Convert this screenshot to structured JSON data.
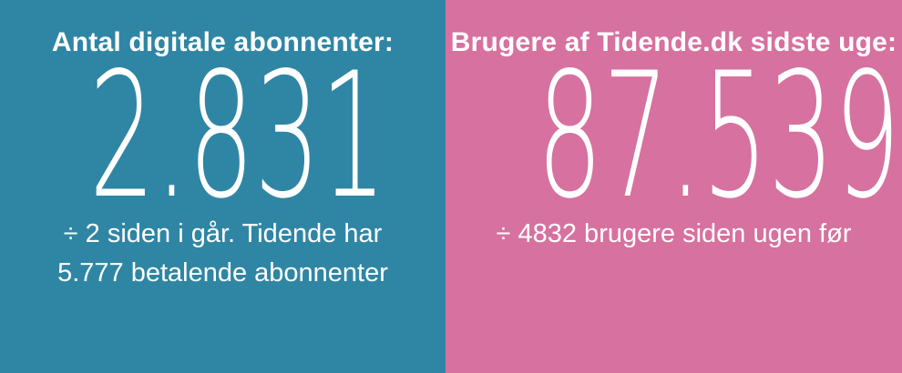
{
  "board": {
    "text_color": "#FFFFFF"
  },
  "panels": [
    {
      "title": "Antal digitale abonnenter:",
      "value": "2.831",
      "note_lines": [
        "÷ 2 siden i går. Tidende har",
        "5.777 betalende abonnenter"
      ],
      "bg": "#2F86A4"
    },
    {
      "title": "Brugere af Tidende.dk sidste uge:",
      "value": "87.539",
      "note_lines": [
        "÷ 4832 brugere siden ugen før"
      ],
      "bg": "#D7719F"
    }
  ],
  "chart_data": {
    "type": "table",
    "title": "Tidende digital statistics",
    "items": [
      {
        "label": "Antal digitale abonnenter",
        "value": 2831,
        "change_note": "÷ 2 siden i går",
        "change": -2,
        "paying_subscribers_total": 5777
      },
      {
        "label": "Brugere af Tidende.dk sidste uge",
        "value": 87539,
        "change_note": "÷ 4832 brugere siden ugen før",
        "change": -4832
      }
    ],
    "colors": {
      "panel_left_bg": "#2F86A4",
      "panel_right_bg": "#D7719F",
      "text": "#FFFFFF"
    },
    "legend_position": "none",
    "grid": false
  }
}
